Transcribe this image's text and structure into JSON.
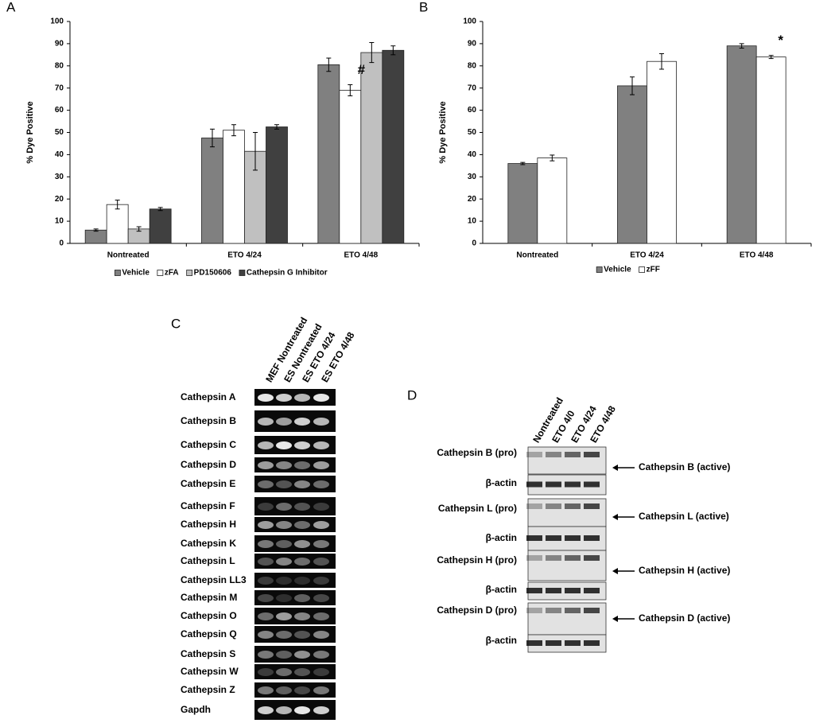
{
  "chart_data": [
    {
      "type": "bar",
      "panel_label": "A",
      "y_label": "% Dye Positive",
      "categories": [
        "Nontreated",
        "ETO 4/24",
        "ETO 4/48"
      ],
      "series": [
        {
          "name": "Vehicle",
          "color": "#808080",
          "values": [
            6,
            47.5,
            80.5
          ],
          "errors": [
            0.5,
            4,
            3
          ]
        },
        {
          "name": "zFA",
          "color": "#ffffff",
          "values": [
            17.5,
            51,
            69
          ],
          "errors": [
            2,
            2.5,
            2.5
          ]
        },
        {
          "name": "PD150606",
          "color": "#c0c0c0",
          "values": [
            6.5,
            41.5,
            86
          ],
          "errors": [
            1,
            8.5,
            4.5
          ]
        },
        {
          "name": "Cathepsin G Inhibitor",
          "color": "#404040",
          "values": [
            15.5,
            52.5,
            87
          ],
          "errors": [
            0.7,
            1,
            2
          ]
        }
      ],
      "annotations": [
        "#"
      ],
      "ylim": [
        0,
        100
      ],
      "yticks": [
        0,
        10,
        20,
        30,
        40,
        50,
        60,
        70,
        80,
        90,
        100
      ]
    },
    {
      "type": "bar",
      "panel_label": "B",
      "y_label": "% Dye Positive",
      "categories": [
        "Nontreated",
        "ETO 4/24",
        "ETO 4/48"
      ],
      "series": [
        {
          "name": "Vehicle",
          "color": "#808080",
          "values": [
            36,
            71,
            89
          ],
          "errors": [
            0.5,
            4,
            1
          ]
        },
        {
          "name": "zFF",
          "color": "#ffffff",
          "values": [
            38.5,
            82,
            84
          ],
          "errors": [
            1.3,
            3.5,
            0.7
          ]
        }
      ],
      "annotations": [
        "*"
      ],
      "ylim": [
        0,
        100
      ],
      "yticks": [
        0,
        10,
        20,
        30,
        40,
        50,
        60,
        70,
        80,
        90,
        100
      ]
    }
  ],
  "gel_c": {
    "panel_label": "C",
    "lanes": [
      "MEF Nontreated",
      "ES Nontreated",
      "ES ETO 4/24",
      "ES ETO 4/48"
    ],
    "rows": [
      "Cathepsin A",
      "Cathepsin B",
      "Cathepsin C",
      "Cathepsin D",
      "Cathepsin E",
      "Cathepsin F",
      "Cathepsin H",
      "Cathepsin K",
      "Cathepsin L",
      "Cathepsin LL3",
      "Cathepsin M",
      "Cathepsin O",
      "Cathepsin Q",
      "Cathepsin S",
      "Cathepsin W",
      "Cathepsin Z",
      "Gapdh"
    ]
  },
  "gel_d": {
    "panel_label": "D",
    "lanes": [
      "Nontreated",
      "ETO 4/0",
      "ETO 4/24",
      "ETO 4/48"
    ],
    "rows": [
      {
        "label": "Cathepsin B (pro)",
        "arrow": "Cathepsin B (active)"
      },
      {
        "label": "β-actin"
      },
      {
        "label": "Cathepsin L (pro)",
        "arrow": "Cathepsin L (active)"
      },
      {
        "label": "β-actin"
      },
      {
        "label": "Cathepsin H (pro)",
        "arrow": "Cathepsin H (active)"
      },
      {
        "label": "β-actin"
      },
      {
        "label": "Cathepsin D (pro)",
        "arrow": "Cathepsin D (active)"
      },
      {
        "label": "β-actin"
      }
    ]
  }
}
